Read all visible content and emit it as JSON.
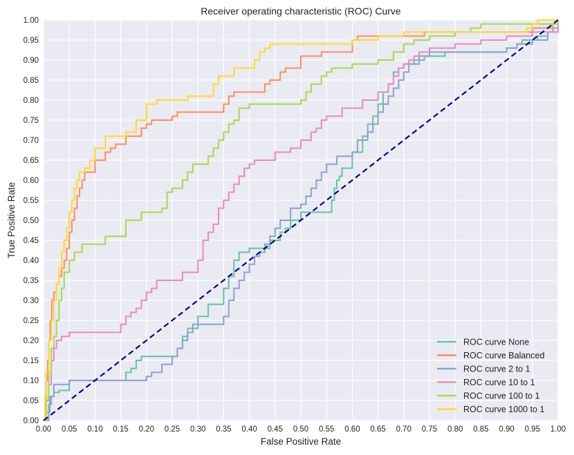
{
  "chart_data": {
    "type": "line",
    "title": "Receiver operating characteristic (ROC) Curve",
    "xlabel": "False Positive Rate",
    "ylabel": "True Positive Rate",
    "xlim": [
      0.0,
      1.0
    ],
    "ylim": [
      0.0,
      1.0
    ],
    "x_ticks": [
      "0.00",
      "0.05",
      "0.10",
      "0.15",
      "0.20",
      "0.25",
      "0.30",
      "0.35",
      "0.40",
      "0.45",
      "0.50",
      "0.55",
      "0.60",
      "0.65",
      "0.70",
      "0.75",
      "0.80",
      "0.85",
      "0.90",
      "0.95",
      "1.00"
    ],
    "y_ticks": [
      "0.00",
      "0.05",
      "0.10",
      "0.15",
      "0.20",
      "0.25",
      "0.30",
      "0.35",
      "0.40",
      "0.45",
      "0.50",
      "0.55",
      "0.60",
      "0.65",
      "0.70",
      "0.75",
      "0.80",
      "0.85",
      "0.90",
      "0.95",
      "1.00"
    ],
    "grid": true,
    "background": "#eaeaf2",
    "legend_position": "lower-right",
    "series": [
      {
        "name": "ROC curve None",
        "color": "#66c2a5",
        "x": [
          0.0,
          0.005,
          0.01,
          0.012,
          0.015,
          0.02,
          0.03,
          0.045,
          0.05,
          0.05,
          0.16,
          0.16,
          0.17,
          0.18,
          0.19,
          0.2,
          0.25,
          0.26,
          0.27,
          0.28,
          0.3,
          0.32,
          0.35,
          0.36,
          0.37,
          0.38,
          0.4,
          0.44,
          0.44,
          0.46,
          0.47,
          0.48,
          0.5,
          0.53,
          0.545,
          0.56,
          0.565,
          0.57,
          0.575,
          0.58,
          0.6,
          0.62,
          0.63,
          0.64,
          0.65,
          0.66,
          0.67,
          0.68,
          0.69,
          0.7,
          0.72,
          0.74,
          0.76,
          0.78,
          0.82,
          0.86,
          0.9,
          0.92,
          0.93,
          0.96,
          0.98,
          0.99,
          1.0
        ],
        "y": [
          0.0,
          0.02,
          0.04,
          0.06,
          0.06,
          0.07,
          0.075,
          0.075,
          0.09,
          0.1,
          0.1,
          0.12,
          0.13,
          0.15,
          0.16,
          0.16,
          0.16,
          0.18,
          0.21,
          0.23,
          0.26,
          0.29,
          0.33,
          0.36,
          0.4,
          0.42,
          0.43,
          0.43,
          0.45,
          0.47,
          0.48,
          0.5,
          0.52,
          0.52,
          0.52,
          0.55,
          0.58,
          0.6,
          0.61,
          0.63,
          0.67,
          0.71,
          0.74,
          0.76,
          0.79,
          0.82,
          0.84,
          0.87,
          0.88,
          0.89,
          0.9,
          0.91,
          0.91,
          0.92,
          0.92,
          0.92,
          0.93,
          0.94,
          0.95,
          0.96,
          0.97,
          0.98,
          1.0
        ]
      },
      {
        "name": "ROC curve Balanced",
        "color": "#fc8d62",
        "x": [
          0.0,
          0.003,
          0.005,
          0.008,
          0.01,
          0.013,
          0.016,
          0.02,
          0.025,
          0.03,
          0.035,
          0.04,
          0.045,
          0.05,
          0.055,
          0.06,
          0.065,
          0.07,
          0.075,
          0.08,
          0.1,
          0.12,
          0.13,
          0.14,
          0.16,
          0.19,
          0.2,
          0.21,
          0.25,
          0.26,
          0.35,
          0.36,
          0.37,
          0.38,
          0.41,
          0.43,
          0.44,
          0.46,
          0.47,
          0.5,
          0.54,
          0.6,
          0.61,
          0.64,
          0.7,
          0.74,
          0.85,
          0.88,
          0.9,
          0.95,
          0.97,
          0.99,
          1.0
        ],
        "y": [
          0.0,
          0.05,
          0.1,
          0.15,
          0.2,
          0.25,
          0.3,
          0.32,
          0.34,
          0.36,
          0.38,
          0.4,
          0.43,
          0.47,
          0.5,
          0.53,
          0.56,
          0.58,
          0.6,
          0.62,
          0.65,
          0.67,
          0.68,
          0.69,
          0.71,
          0.73,
          0.74,
          0.75,
          0.76,
          0.77,
          0.79,
          0.81,
          0.82,
          0.82,
          0.82,
          0.84,
          0.85,
          0.87,
          0.88,
          0.91,
          0.92,
          0.95,
          0.96,
          0.96,
          0.96,
          0.97,
          0.97,
          0.97,
          0.97,
          0.98,
          0.98,
          0.99,
          1.0
        ]
      },
      {
        "name": "ROC curve 2 to 1",
        "color": "#8da0cb",
        "x": [
          0.0,
          0.01,
          0.012,
          0.015,
          0.02,
          0.02,
          0.04,
          0.05,
          0.16,
          0.19,
          0.2,
          0.21,
          0.23,
          0.25,
          0.26,
          0.27,
          0.28,
          0.29,
          0.35,
          0.36,
          0.37,
          0.38,
          0.39,
          0.4,
          0.41,
          0.42,
          0.43,
          0.44,
          0.45,
          0.46,
          0.48,
          0.5,
          0.51,
          0.52,
          0.53,
          0.54,
          0.55,
          0.57,
          0.59,
          0.6,
          0.61,
          0.63,
          0.64,
          0.65,
          0.66,
          0.67,
          0.68,
          0.69,
          0.7,
          0.71,
          0.73,
          0.75,
          0.78,
          0.82,
          0.88,
          0.9,
          0.92,
          0.95,
          0.98,
          1.0
        ],
        "y": [
          0.0,
          0.02,
          0.04,
          0.06,
          0.07,
          0.09,
          0.09,
          0.1,
          0.1,
          0.1,
          0.11,
          0.12,
          0.14,
          0.16,
          0.18,
          0.2,
          0.22,
          0.24,
          0.26,
          0.3,
          0.33,
          0.35,
          0.37,
          0.39,
          0.41,
          0.42,
          0.44,
          0.46,
          0.48,
          0.5,
          0.53,
          0.54,
          0.56,
          0.58,
          0.6,
          0.62,
          0.64,
          0.66,
          0.66,
          0.67,
          0.7,
          0.72,
          0.74,
          0.77,
          0.79,
          0.81,
          0.83,
          0.85,
          0.87,
          0.89,
          0.91,
          0.92,
          0.92,
          0.92,
          0.92,
          0.93,
          0.94,
          0.95,
          0.97,
          1.0
        ]
      },
      {
        "name": "ROC curve 10 to 1",
        "color": "#e78ac3",
        "x": [
          0.0,
          0.005,
          0.01,
          0.015,
          0.02,
          0.025,
          0.03,
          0.035,
          0.05,
          0.1,
          0.15,
          0.16,
          0.17,
          0.18,
          0.19,
          0.2,
          0.21,
          0.22,
          0.27,
          0.3,
          0.31,
          0.32,
          0.33,
          0.34,
          0.35,
          0.36,
          0.37,
          0.38,
          0.39,
          0.4,
          0.41,
          0.43,
          0.44,
          0.45,
          0.48,
          0.5,
          0.52,
          0.53,
          0.54,
          0.55,
          0.58,
          0.6,
          0.62,
          0.65,
          0.67,
          0.68,
          0.69,
          0.7,
          0.71,
          0.72,
          0.73,
          0.75,
          0.78,
          0.8,
          0.85,
          0.9,
          0.95,
          1.0
        ],
        "y": [
          0.0,
          0.05,
          0.09,
          0.15,
          0.18,
          0.2,
          0.2,
          0.21,
          0.22,
          0.22,
          0.24,
          0.26,
          0.27,
          0.28,
          0.3,
          0.32,
          0.33,
          0.35,
          0.37,
          0.4,
          0.45,
          0.47,
          0.49,
          0.53,
          0.55,
          0.57,
          0.59,
          0.61,
          0.63,
          0.64,
          0.65,
          0.65,
          0.65,
          0.67,
          0.68,
          0.7,
          0.72,
          0.73,
          0.75,
          0.76,
          0.78,
          0.78,
          0.8,
          0.82,
          0.84,
          0.86,
          0.88,
          0.89,
          0.9,
          0.91,
          0.92,
          0.93,
          0.93,
          0.94,
          0.95,
          0.96,
          0.97,
          1.0
        ]
      },
      {
        "name": "ROC curve 100 to 1",
        "color": "#a6d854",
        "x": [
          0.0,
          0.005,
          0.01,
          0.015,
          0.02,
          0.025,
          0.03,
          0.035,
          0.04,
          0.05,
          0.06,
          0.075,
          0.08,
          0.12,
          0.16,
          0.19,
          0.23,
          0.24,
          0.25,
          0.27,
          0.28,
          0.29,
          0.32,
          0.33,
          0.34,
          0.35,
          0.36,
          0.37,
          0.38,
          0.4,
          0.41,
          0.42,
          0.44,
          0.5,
          0.51,
          0.52,
          0.54,
          0.55,
          0.56,
          0.57,
          0.58,
          0.6,
          0.65,
          0.68,
          0.7,
          0.72,
          0.75,
          0.8,
          0.83,
          0.85,
          0.9,
          0.95,
          0.98,
          1.0
        ],
        "y": [
          0.0,
          0.06,
          0.12,
          0.18,
          0.21,
          0.25,
          0.3,
          0.33,
          0.37,
          0.4,
          0.42,
          0.44,
          0.44,
          0.46,
          0.5,
          0.52,
          0.53,
          0.57,
          0.58,
          0.6,
          0.62,
          0.64,
          0.66,
          0.68,
          0.7,
          0.72,
          0.74,
          0.75,
          0.78,
          0.79,
          0.79,
          0.79,
          0.79,
          0.8,
          0.82,
          0.84,
          0.86,
          0.87,
          0.88,
          0.88,
          0.88,
          0.89,
          0.9,
          0.92,
          0.94,
          0.95,
          0.96,
          0.97,
          0.98,
          0.99,
          0.99,
          0.99,
          0.99,
          1.0
        ]
      },
      {
        "name": "ROC curve 1000 to 1",
        "color": "#ffd92f",
        "x": [
          0.0,
          0.003,
          0.005,
          0.01,
          0.015,
          0.02,
          0.025,
          0.03,
          0.035,
          0.04,
          0.045,
          0.05,
          0.055,
          0.06,
          0.065,
          0.07,
          0.08,
          0.09,
          0.1,
          0.12,
          0.14,
          0.16,
          0.18,
          0.2,
          0.22,
          0.28,
          0.33,
          0.34,
          0.37,
          0.41,
          0.42,
          0.43,
          0.44,
          0.5,
          0.55,
          0.6,
          0.65,
          0.7,
          0.75,
          0.8,
          0.88,
          0.94,
          0.95,
          0.96,
          0.98,
          1.0
        ],
        "y": [
          0.0,
          0.06,
          0.12,
          0.2,
          0.25,
          0.3,
          0.34,
          0.38,
          0.42,
          0.45,
          0.48,
          0.52,
          0.55,
          0.58,
          0.6,
          0.62,
          0.63,
          0.65,
          0.68,
          0.71,
          0.71,
          0.72,
          0.75,
          0.79,
          0.8,
          0.81,
          0.84,
          0.86,
          0.88,
          0.9,
          0.92,
          0.93,
          0.94,
          0.94,
          0.94,
          0.95,
          0.96,
          0.97,
          0.97,
          0.97,
          0.97,
          0.98,
          0.99,
          1.0,
          1.0,
          1.0
        ]
      }
    ],
    "reference_line": {
      "x": [
        0.0,
        1.0
      ],
      "y": [
        0.0,
        1.0
      ],
      "color": "#000080",
      "style": "dashed"
    }
  }
}
